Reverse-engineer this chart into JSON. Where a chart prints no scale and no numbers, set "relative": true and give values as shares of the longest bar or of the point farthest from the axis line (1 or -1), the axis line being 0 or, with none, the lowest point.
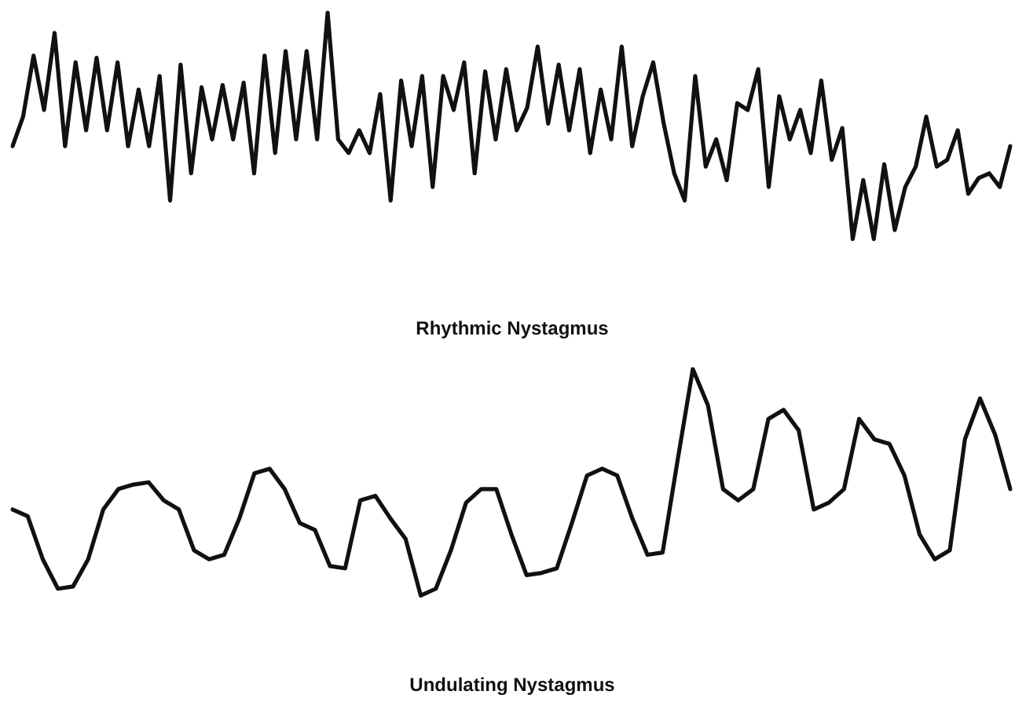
{
  "chart_data": [
    {
      "type": "line",
      "title": "Rhythmic Nystagmus",
      "relative": true,
      "legend": false,
      "marker": "none",
      "line_style": "solid",
      "categories": [
        null,
        null,
        null,
        null,
        null,
        null,
        null,
        null,
        null,
        null,
        null,
        null,
        null,
        null,
        null,
        null,
        null,
        null,
        null,
        null,
        null,
        null,
        null,
        null,
        null,
        null,
        null,
        null,
        null,
        null,
        null,
        null,
        null,
        null,
        null,
        null,
        null,
        null,
        null,
        null,
        null,
        null,
        null,
        null,
        null,
        null,
        null,
        null,
        null,
        null,
        null,
        null,
        null,
        null,
        null,
        null,
        null,
        null,
        null,
        null,
        null,
        null,
        null,
        null,
        null,
        null,
        null,
        null,
        null,
        null,
        null,
        null,
        null,
        null,
        null,
        null,
        null,
        null,
        null,
        null,
        null,
        null,
        null,
        null,
        null,
        null,
        null,
        null,
        null,
        null,
        null,
        null,
        null,
        null,
        null,
        null
      ],
      "series": [
        {
          "color": "#111111",
          "values": [
            0.41,
            0.54,
            0.81,
            0.57,
            0.91,
            0.41,
            0.78,
            0.48,
            0.8,
            0.48,
            0.78,
            0.41,
            0.66,
            0.41,
            0.72,
            0.17,
            0.77,
            0.29,
            0.67,
            0.44,
            0.68,
            0.44,
            0.69,
            0.29,
            0.81,
            0.38,
            0.83,
            0.44,
            0.83,
            0.44,
            1,
            0.44,
            0.38,
            0.48,
            0.38,
            0.64,
            0.17,
            0.7,
            0.41,
            0.72,
            0.23,
            0.72,
            0.57,
            0.78,
            0.29,
            0.74,
            0.44,
            0.75,
            0.48,
            0.58,
            0.85,
            0.51,
            0.77,
            0.48,
            0.75,
            0.38,
            0.66,
            0.44,
            0.85,
            0.41,
            0.63,
            0.78,
            0.51,
            0.29,
            0.17,
            0.72,
            0.32,
            0.44,
            0.26,
            0.6,
            0.57,
            0.75,
            0.23,
            0.63,
            0.44,
            0.57,
            0.38,
            0.7,
            0.35,
            0.49,
            0,
            0.26,
            0,
            0.33,
            0.04,
            0.23,
            0.32,
            0.54,
            0.32,
            0.35,
            0.48,
            0.2,
            0.27,
            0.29,
            0.23,
            0.41
          ]
        }
      ]
    },
    {
      "type": "line",
      "title": "Undulating Nystagmus",
      "relative": true,
      "legend": false,
      "marker": "none",
      "line_style": "solid",
      "categories": [
        null,
        null,
        null,
        null,
        null,
        null,
        null,
        null,
        null,
        null,
        null,
        null,
        null,
        null,
        null,
        null,
        null,
        null,
        null,
        null,
        null,
        null,
        null,
        null,
        null,
        null,
        null,
        null,
        null,
        null,
        null,
        null,
        null,
        null,
        null,
        null,
        null,
        null,
        null,
        null,
        null,
        null,
        null,
        null,
        null,
        null,
        null,
        null,
        null,
        null,
        null,
        null,
        null,
        null,
        null,
        null,
        null,
        null,
        null,
        null,
        null,
        null,
        null,
        null,
        null,
        null,
        null
      ],
      "series": [
        {
          "color": "#111111",
          "values": [
            0.38,
            0.35,
            0.16,
            0.03,
            0.04,
            0.16,
            0.38,
            0.47,
            0.49,
            0.5,
            0.42,
            0.38,
            0.2,
            0.16,
            0.18,
            0.34,
            0.54,
            0.56,
            0.47,
            0.32,
            0.29,
            0.13,
            0.12,
            0.42,
            0.44,
            0.34,
            0.25,
            0,
            0.03,
            0.2,
            0.41,
            0.47,
            0.47,
            0.27,
            0.09,
            0.1,
            0.12,
            0.32,
            0.53,
            0.56,
            0.53,
            0.34,
            0.18,
            0.19,
            0.6,
            1,
            0.84,
            0.47,
            0.42,
            0.47,
            0.78,
            0.82,
            0.73,
            0.38,
            0.41,
            0.47,
            0.78,
            0.69,
            0.67,
            0.53,
            0.27,
            0.16,
            0.2,
            0.69,
            0.87,
            0.71,
            0.47
          ]
        }
      ]
    }
  ]
}
